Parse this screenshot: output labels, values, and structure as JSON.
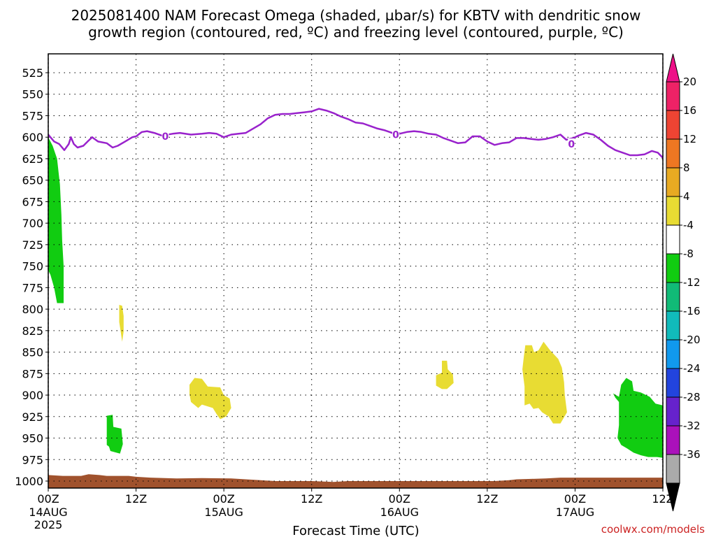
{
  "title_lines": [
    "2025081400 NAM Forecast Omega (shaded, µbar/s) for KBTV with dendritic snow",
    "growth region (contoured, red, ºC) and freezing level (contoured, purple, ºC)"
  ],
  "credit": "coolwx.com/models",
  "chart_data": {
    "type": "contour",
    "title": "2025081400 NAM Forecast Omega (shaded, µbar/s) for KBTV with dendritic snow growth region (contoured, red, ºC) and freezing level (contoured, purple, ºC)",
    "xlabel": "Forecast Time (UTC)",
    "ylabel": "",
    "x_unit": "hours since 2025-08-14 00Z",
    "xlim": [
      0,
      84
    ],
    "ylim": [
      1010,
      505
    ],
    "grid": true,
    "x_ticks": [
      {
        "value": 0,
        "label": "00Z",
        "date": "14AUG",
        "year": "2025"
      },
      {
        "value": 12,
        "label": "12Z"
      },
      {
        "value": 24,
        "label": "00Z",
        "date": "15AUG"
      },
      {
        "value": 36,
        "label": "12Z"
      },
      {
        "value": 48,
        "label": "00Z",
        "date": "16AUG"
      },
      {
        "value": 60,
        "label": "12Z"
      },
      {
        "value": 72,
        "label": "00Z",
        "date": "17AUG"
      },
      {
        "value": 84,
        "label": "12Z"
      }
    ],
    "y_ticks": [
      525,
      550,
      575,
      600,
      625,
      650,
      675,
      700,
      725,
      750,
      775,
      800,
      825,
      850,
      875,
      900,
      925,
      950,
      975,
      1000
    ],
    "colorbar": {
      "labels": [
        "20",
        "16",
        "12",
        "8",
        "4",
        "-4",
        "-8",
        "-12",
        "-16",
        "-20",
        "-24",
        "-28",
        "-32",
        "-36"
      ],
      "colors": [
        "#ee2266",
        "#ee4433",
        "#ee7722",
        "#e8aa22",
        "#e8dc33",
        "#ffffff",
        "#11cc11",
        "#11bb77",
        "#11bbbb",
        "#1199ee",
        "#2244dd",
        "#6622cc",
        "#aa11bb",
        "#aaaaaa"
      ],
      "top_color": "#ee1188",
      "bottom_color": "#000000"
    },
    "freezing_level": {
      "color": "#9922cc",
      "label": "0",
      "label_positions": [
        {
          "hour": 16,
          "p": 599
        },
        {
          "hour": 47.5,
          "p": 597
        },
        {
          "hour": 71.5,
          "p": 608
        }
      ],
      "points": [
        [
          0,
          597
        ],
        [
          0.8,
          605
        ],
        [
          1.5,
          608
        ],
        [
          2.2,
          615
        ],
        [
          2.8,
          608
        ],
        [
          3.1,
          600
        ],
        [
          3.5,
          608
        ],
        [
          4,
          612
        ],
        [
          4.8,
          610
        ],
        [
          5.5,
          604
        ],
        [
          6,
          600
        ],
        [
          6.8,
          605
        ],
        [
          8,
          607
        ],
        [
          8.8,
          612
        ],
        [
          9.5,
          610
        ],
        [
          10.5,
          605
        ],
        [
          11.5,
          600
        ],
        [
          12,
          599
        ],
        [
          12.8,
          594
        ],
        [
          13.5,
          593
        ],
        [
          14.5,
          595
        ],
        [
          15.5,
          598
        ],
        [
          17,
          596
        ],
        [
          18,
          595
        ],
        [
          19.5,
          597
        ],
        [
          21,
          596
        ],
        [
          22,
          595
        ],
        [
          23,
          596
        ],
        [
          24,
          600
        ],
        [
          25,
          597
        ],
        [
          26,
          596
        ],
        [
          27,
          595
        ],
        [
          28,
          590
        ],
        [
          29,
          585
        ],
        [
          30,
          578
        ],
        [
          31,
          574
        ],
        [
          32,
          573
        ],
        [
          33,
          573
        ],
        [
          34,
          572
        ],
        [
          35,
          571
        ],
        [
          36,
          570
        ],
        [
          37,
          567
        ],
        [
          38,
          569
        ],
        [
          39,
          572
        ],
        [
          40,
          576
        ],
        [
          41,
          579
        ],
        [
          42,
          583
        ],
        [
          43,
          584
        ],
        [
          44,
          587
        ],
        [
          45,
          590
        ],
        [
          46,
          592
        ],
        [
          47,
          595
        ],
        [
          48,
          596
        ],
        [
          49,
          594
        ],
        [
          50,
          593
        ],
        [
          51,
          594
        ],
        [
          52,
          596
        ],
        [
          53,
          597
        ],
        [
          54,
          601
        ],
        [
          55,
          604
        ],
        [
          56,
          607
        ],
        [
          57,
          606
        ],
        [
          58,
          599
        ],
        [
          59,
          599
        ],
        [
          60,
          605
        ],
        [
          61,
          609
        ],
        [
          62,
          607
        ],
        [
          63,
          606
        ],
        [
          64,
          601
        ],
        [
          65,
          601
        ],
        [
          66,
          602
        ],
        [
          67,
          603
        ],
        [
          68,
          602
        ],
        [
          69,
          600
        ],
        [
          70,
          597
        ],
        [
          70.8,
          603
        ],
        [
          71.8,
          601
        ],
        [
          72.5,
          598
        ],
        [
          73.5,
          595
        ],
        [
          74.5,
          597
        ],
        [
          75.5,
          603
        ],
        [
          76.5,
          610
        ],
        [
          77.5,
          615
        ],
        [
          78.5,
          618
        ],
        [
          79.5,
          621
        ],
        [
          80.5,
          621
        ],
        [
          81.5,
          620
        ],
        [
          82.5,
          616
        ],
        [
          83.3,
          618
        ],
        [
          84,
          624
        ]
      ]
    },
    "shaded_regions": [
      {
        "name": "omega-neg4-green-1",
        "range": "-8 to -4",
        "color": "#11cc11",
        "points": [
          [
            0,
            600
          ],
          [
            0.6,
            610
          ],
          [
            1.2,
            625
          ],
          [
            1.6,
            655
          ],
          [
            1.8,
            690
          ],
          [
            1.9,
            720
          ],
          [
            2.1,
            750
          ],
          [
            2.1,
            793
          ],
          [
            1.2,
            793
          ],
          [
            0.8,
            775
          ],
          [
            0.3,
            760
          ],
          [
            0,
            755
          ]
        ]
      },
      {
        "name": "omega-pos4-yellow-1",
        "range": "4 to 8",
        "color": "#e8dc33",
        "points": [
          [
            9.7,
            795
          ],
          [
            10.1,
            796
          ],
          [
            10.3,
            808
          ],
          [
            10.3,
            826
          ],
          [
            10.1,
            838
          ],
          [
            9.9,
            826
          ],
          [
            9.7,
            815
          ]
        ]
      },
      {
        "name": "omega-neg4-green-2",
        "range": "-8 to -4",
        "color": "#11cc11",
        "points": [
          [
            8,
            924
          ],
          [
            8.8,
            923
          ],
          [
            8.9,
            937
          ],
          [
            10,
            939
          ],
          [
            10.2,
            957
          ],
          [
            9.8,
            968
          ],
          [
            8.5,
            965
          ],
          [
            8.3,
            960
          ],
          [
            8,
            958
          ]
        ]
      },
      {
        "name": "omega-pos4-yellow-2",
        "range": "4 to 8",
        "color": "#e8dc33",
        "points": [
          [
            19.3,
            888
          ],
          [
            20,
            880
          ],
          [
            21,
            881
          ],
          [
            21.8,
            890
          ],
          [
            23.5,
            891
          ],
          [
            24,
            900
          ],
          [
            24.8,
            904
          ],
          [
            25,
            915
          ],
          [
            24.3,
            925
          ],
          [
            23.5,
            928
          ],
          [
            23,
            922
          ],
          [
            22.5,
            915
          ],
          [
            21,
            911
          ],
          [
            20.5,
            915
          ],
          [
            19.5,
            908
          ],
          [
            19.3,
            899
          ]
        ]
      },
      {
        "name": "omega-pos4-yellow-3",
        "range": "4 to 8",
        "color": "#e8dc33",
        "points": [
          [
            53,
            877
          ],
          [
            53.8,
            874
          ],
          [
            53.8,
            860
          ],
          [
            54.5,
            860
          ],
          [
            54.6,
            870
          ],
          [
            55.3,
            876
          ],
          [
            55.4,
            886
          ],
          [
            54.5,
            893
          ],
          [
            53.8,
            893
          ],
          [
            53,
            889
          ]
        ]
      },
      {
        "name": "omega-pos4-yellow-4",
        "range": "4 to 8",
        "color": "#e8dc33",
        "points": [
          [
            65.2,
            842
          ],
          [
            66.1,
            842
          ],
          [
            66.4,
            850
          ],
          [
            67,
            848
          ],
          [
            67.7,
            838
          ],
          [
            68.6,
            848
          ],
          [
            69.7,
            858
          ],
          [
            70.2,
            868
          ],
          [
            70.5,
            885
          ],
          [
            70.6,
            900
          ],
          [
            70.9,
            920
          ],
          [
            70,
            933
          ],
          [
            69,
            933
          ],
          [
            68.4,
            925
          ],
          [
            67.5,
            920
          ],
          [
            67,
            915
          ],
          [
            66.3,
            916
          ],
          [
            65.8,
            910
          ],
          [
            65.1,
            912
          ],
          [
            65.1,
            890
          ],
          [
            64.8,
            870
          ],
          [
            65,
            855
          ]
        ]
      },
      {
        "name": "omega-neg4-green-3",
        "range": "-8 to -4",
        "color": "#11cc11",
        "points": [
          [
            77.2,
            898
          ],
          [
            78,
            902
          ],
          [
            78.3,
            888
          ],
          [
            79,
            880
          ],
          [
            79.8,
            884
          ],
          [
            80,
            895
          ],
          [
            81,
            897
          ],
          [
            82.2,
            902
          ],
          [
            83,
            910
          ],
          [
            84,
            912
          ],
          [
            84,
            973
          ],
          [
            83.2,
            972
          ],
          [
            82,
            972
          ],
          [
            81,
            970
          ],
          [
            80,
            967
          ],
          [
            79.1,
            962
          ],
          [
            78.3,
            958
          ],
          [
            77.8,
            950
          ],
          [
            78,
            935
          ],
          [
            78,
            908
          ],
          [
            77.5,
            903
          ]
        ]
      }
    ],
    "terrain": {
      "color": "#a0522d",
      "top_points": [
        [
          0,
          993
        ],
        [
          2,
          994
        ],
        [
          4.5,
          994
        ],
        [
          5.5,
          992
        ],
        [
          7,
          993
        ],
        [
          8,
          994
        ],
        [
          11,
          994
        ],
        [
          12,
          995
        ],
        [
          14,
          996
        ],
        [
          17.5,
          997
        ],
        [
          21,
          996.5
        ],
        [
          25,
          997
        ],
        [
          29,
          999
        ],
        [
          31,
          1000
        ],
        [
          36,
          1000
        ],
        [
          39,
          1001
        ],
        [
          41,
          1000
        ],
        [
          44,
          1000
        ],
        [
          47,
          1000
        ],
        [
          61,
          1000
        ],
        [
          63,
          999
        ],
        [
          64,
          998
        ],
        [
          66,
          997.5
        ],
        [
          68,
          997
        ],
        [
          70,
          996
        ],
        [
          74,
          996
        ],
        [
          84,
          996
        ]
      ]
    }
  }
}
